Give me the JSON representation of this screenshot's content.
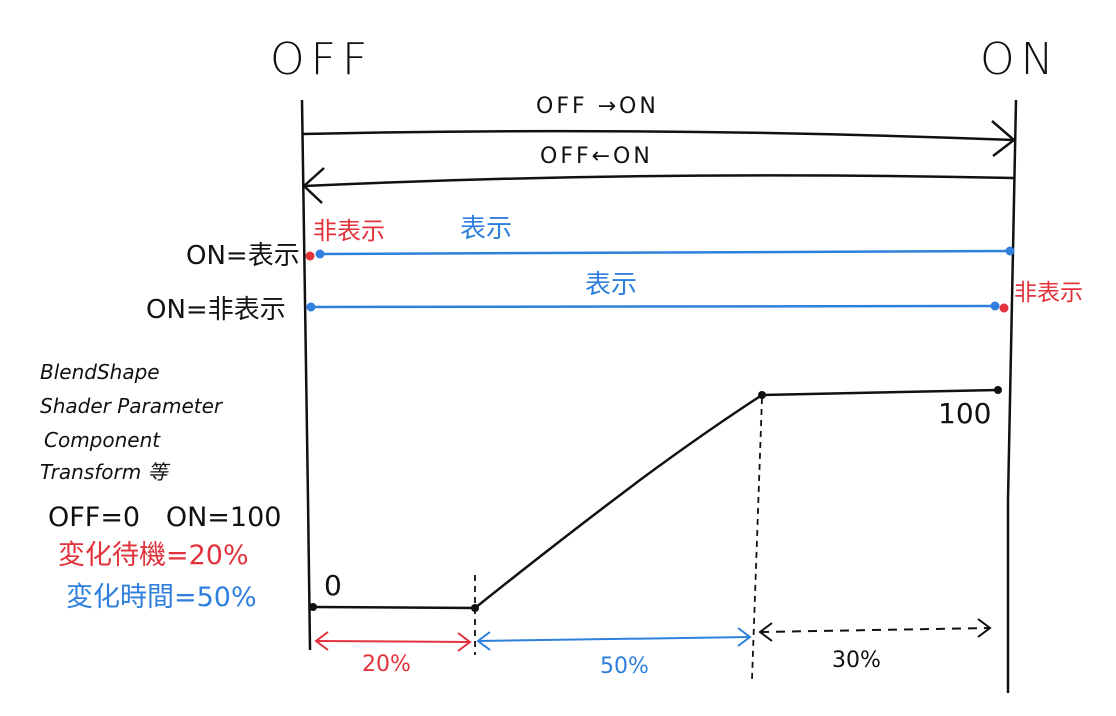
{
  "title_left": "OFF",
  "title_right": "ON",
  "arrows": {
    "off_to_on": "OFF →ON",
    "on_to_off": "OFF←ON"
  },
  "rows": {
    "on_show": {
      "label": "ON=表示",
      "start_note": "非表示",
      "main_note": "表示"
    },
    "on_hide": {
      "label": "ON=非表示",
      "main_note": "表示",
      "end_note": "非表示"
    }
  },
  "properties": {
    "items": [
      "BlendShape",
      "Shader Parameter",
      "Component",
      "Transform 等"
    ],
    "off_on": "OFF=0   ON=100",
    "wait": "変化待機=20%",
    "time": "変化時間=50%"
  },
  "graph": {
    "start_value": "0",
    "end_value": "100",
    "segments": [
      "20%",
      "50%",
      "30%"
    ]
  },
  "colors": {
    "red": "#e2323c",
    "blue": "#2f7fdc",
    "ink": "#111111"
  }
}
